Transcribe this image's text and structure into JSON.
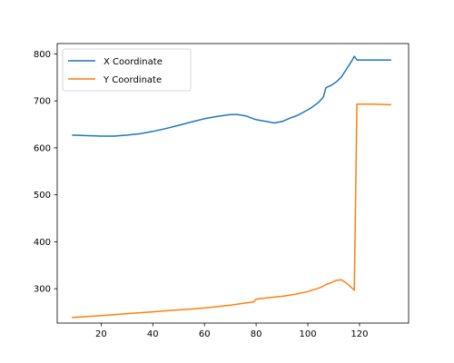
{
  "chart_data": {
    "type": "line",
    "title": "",
    "xlabel": "",
    "ylabel": "",
    "xlim": [
      3,
      139
    ],
    "ylim": [
      227,
      822
    ],
    "xticks": [
      20,
      40,
      60,
      80,
      100,
      120
    ],
    "yticks": [
      300,
      400,
      500,
      600,
      700,
      800
    ],
    "grid": false,
    "legend_position": "upper-left",
    "series": [
      {
        "name": "X Coordinate",
        "color": "#1f77b4",
        "points": [
          [
            9,
            627
          ],
          [
            15,
            626
          ],
          [
            20,
            625
          ],
          [
            25,
            625
          ],
          [
            30,
            627
          ],
          [
            35,
            630
          ],
          [
            40,
            635
          ],
          [
            45,
            641
          ],
          [
            50,
            648
          ],
          [
            55,
            655
          ],
          [
            60,
            662
          ],
          [
            65,
            667
          ],
          [
            70,
            671
          ],
          [
            73,
            671
          ],
          [
            76,
            668
          ],
          [
            80,
            660
          ],
          [
            84,
            656
          ],
          [
            87,
            653
          ],
          [
            90,
            656
          ],
          [
            93,
            663
          ],
          [
            96,
            669
          ],
          [
            98,
            675
          ],
          [
            101,
            684
          ],
          [
            104,
            696
          ],
          [
            106,
            708
          ],
          [
            107,
            728
          ],
          [
            109,
            733
          ],
          [
            111,
            740
          ],
          [
            113,
            751
          ],
          [
            115,
            768
          ],
          [
            117,
            785
          ],
          [
            118,
            795
          ],
          [
            119,
            787
          ],
          [
            125,
            787
          ],
          [
            132,
            787
          ]
        ]
      },
      {
        "name": "Y Coordinate",
        "color": "#ff7f0e",
        "points": [
          [
            9,
            239
          ],
          [
            15,
            241
          ],
          [
            20,
            243
          ],
          [
            25,
            245
          ],
          [
            30,
            247
          ],
          [
            35,
            249
          ],
          [
            40,
            251
          ],
          [
            45,
            253
          ],
          [
            50,
            255
          ],
          [
            55,
            257
          ],
          [
            60,
            259
          ],
          [
            65,
            262
          ],
          [
            70,
            265
          ],
          [
            75,
            269
          ],
          [
            79,
            272
          ],
          [
            80,
            278
          ],
          [
            85,
            281
          ],
          [
            90,
            284
          ],
          [
            95,
            288
          ],
          [
            100,
            294
          ],
          [
            105,
            303
          ],
          [
            107,
            309
          ],
          [
            109,
            313
          ],
          [
            111,
            318
          ],
          [
            113,
            319
          ],
          [
            115,
            312
          ],
          [
            117,
            302
          ],
          [
            118,
            297
          ],
          [
            119,
            693
          ],
          [
            125,
            693
          ],
          [
            132,
            692
          ]
        ]
      }
    ]
  }
}
